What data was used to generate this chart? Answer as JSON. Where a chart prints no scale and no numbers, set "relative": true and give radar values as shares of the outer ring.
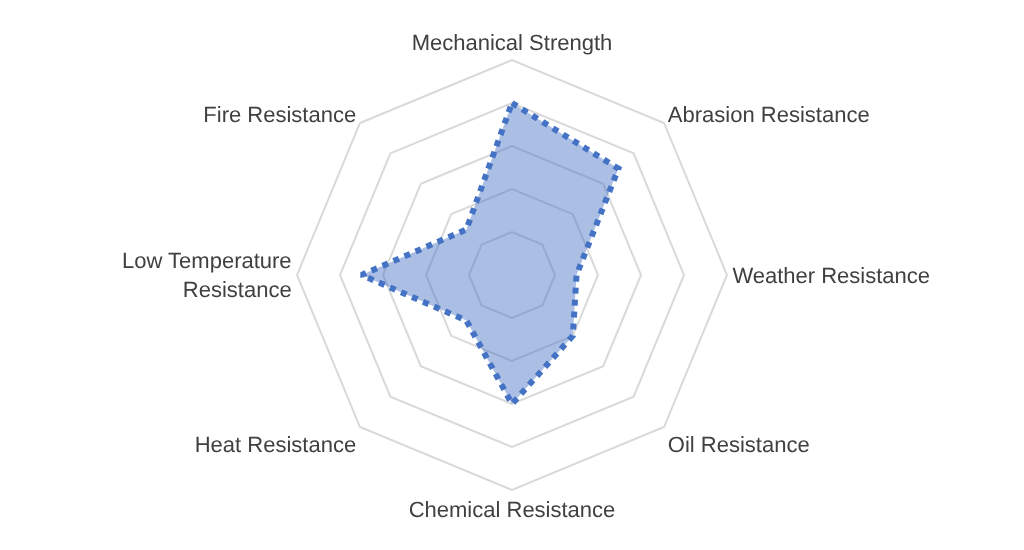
{
  "chart_data": {
    "type": "radar",
    "relative": true,
    "grid": true,
    "marker": "none",
    "line_style": "dotted",
    "categories": [
      "Mechanical Strength",
      "Abrasion Resistance",
      "Weather Resistance",
      "Oil Resistance",
      "Chemical Resistance",
      "Heat Resistance",
      "Low Temperature\nResistance",
      "Fire Resistance"
    ],
    "series": [
      {
        "color": "#4472c4",
        "values": [
          0.8,
          0.7,
          0.3,
          0.4,
          0.6,
          0.3,
          0.7,
          0.3
        ]
      }
    ]
  }
}
